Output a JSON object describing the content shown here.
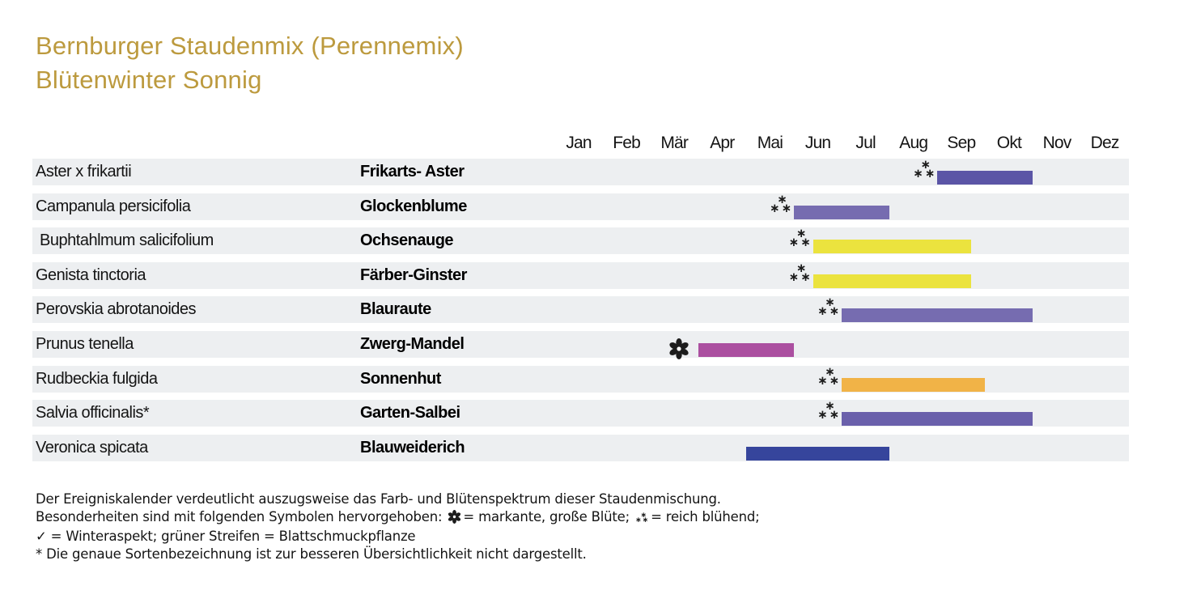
{
  "title": {
    "line1": "Bernburger Staudenmix (Perennemix)",
    "line2": "Blütenwinter Sonnig"
  },
  "colors": {
    "title_gold": "#bc9a3e",
    "row_stripe": "#edeff1",
    "text": "#141414"
  },
  "chart_data": {
    "type": "bar",
    "subtype": "gantt-flowering-calendar",
    "months": [
      "Jan",
      "Feb",
      "Mär",
      "Apr",
      "Mai",
      "Jun",
      "Jul",
      "Aug",
      "Sep",
      "Okt",
      "Nov",
      "Dez"
    ],
    "x_axis_note": "start/end are fractional month positions, Jan = 0, Dez end = 12",
    "rows": [
      {
        "latin": "Aster x frikartii",
        "german": "Frikarts- Aster",
        "symbol": "rich-bloom",
        "start": 8.0,
        "end": 10.0,
        "period": "Sep-Okt",
        "color": "#5b55a6"
      },
      {
        "latin": "Campanula persicifolia",
        "german": "Glockenblume",
        "symbol": "rich-bloom",
        "start": 5.0,
        "end": 7.0,
        "period": "Jun-Jul",
        "color": "#766cb0"
      },
      {
        "latin": " Buphtahlmum salicifolium",
        "german": "Ochsenauge",
        "symbol": "rich-bloom",
        "start": 5.4,
        "end": 8.7,
        "period": "Jun-Sep",
        "color": "#ebe33e"
      },
      {
        "latin": "Genista tinctoria",
        "german": "Färber-Ginster",
        "symbol": "rich-bloom",
        "start": 5.4,
        "end": 8.7,
        "period": "Jun-Sep",
        "color": "#ebe33e"
      },
      {
        "latin": "Perovskia abrotanoides",
        "german": "Blauraute",
        "symbol": "rich-bloom",
        "start": 6.0,
        "end": 10.0,
        "period": "Jul-Okt",
        "color": "#766cb0"
      },
      {
        "latin": "Prunus tenella",
        "german": "Zwerg-Mandel",
        "symbol": "large-bloom",
        "start": 3.0,
        "end": 5.0,
        "period": "Apr-Mai",
        "color": "#ab4fa0"
      },
      {
        "latin": "Rudbeckia fulgida",
        "german": "Sonnenhut",
        "symbol": "rich-bloom",
        "start": 6.0,
        "end": 9.0,
        "period": "Jul-Sep",
        "color": "#f1b347"
      },
      {
        "latin": "Salvia officinalis*",
        "german": "Garten-Salbei",
        "symbol": "rich-bloom",
        "start": 6.0,
        "end": 10.0,
        "period": "Jul-Okt",
        "color": "#6a60ab"
      },
      {
        "latin": "Veronica spicata",
        "german": "Blauweiderich",
        "symbol": null,
        "start": 4.0,
        "end": 7.0,
        "period": "Mai-Jul",
        "color": "#36459c"
      }
    ],
    "legend": {
      "rich_bloom_symbol": "three small asterisks (asterism)",
      "large_bloom_symbol": "heavy black flower asterisk"
    }
  },
  "footer": {
    "line1": "Der Ereigniskalender verdeutlicht auszugsweise das Farb- und Blütenspektrum dieser Staudenmischung.",
    "line2_prefix": "Besonderheiten sind mit folgenden Symbolen hervorgehoben: ",
    "line2_large_bloom": "= markante, große Blüte; ",
    "line2_rich_bloom": "= reich blühend;",
    "line3": "✓ = Winteraspekt; grüner Streifen = Blattschmuckpflanze",
    "line4": "* Die genaue Sortenbezeichnung ist zur besseren Übersichtlichkeit nicht dargestellt."
  }
}
